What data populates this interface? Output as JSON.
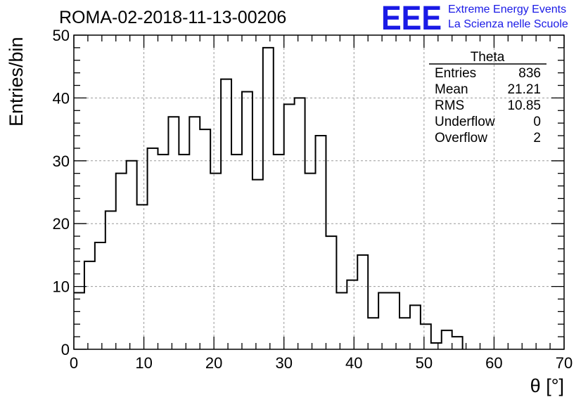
{
  "colors": {
    "brand": "#1a1ae6",
    "line": "#000000",
    "grid": "#999999"
  },
  "logo": {
    "mark": "EEE",
    "line1": "Extreme Energy Events",
    "line2": "La Scienza nelle Scuole"
  },
  "stats": {
    "title": "Theta",
    "rows": [
      {
        "label": "Entries",
        "value": "836"
      },
      {
        "label": "Mean",
        "value": "21.21"
      },
      {
        "label": "RMS",
        "value": "10.85"
      },
      {
        "label": "Underflow",
        "value": "0"
      },
      {
        "label": "Overflow",
        "value": "2"
      }
    ]
  },
  "chart_data": {
    "type": "histogram",
    "title": "ROMA-02-2018-11-13-00206",
    "xlabel": "θ [°]",
    "ylabel": "Entries/bin",
    "xlim": [
      0,
      70
    ],
    "ylim": [
      0,
      50
    ],
    "grid": true,
    "bin_width": 1.5,
    "bin_edges_start": 0,
    "x_ticks": [
      0,
      10,
      20,
      30,
      40,
      50,
      60,
      70
    ],
    "y_ticks": [
      0,
      10,
      20,
      30,
      40,
      50
    ],
    "values": [
      9,
      14,
      17,
      22,
      28,
      30,
      23,
      32,
      31,
      37,
      31,
      37,
      35,
      28,
      43,
      31,
      41,
      27,
      48,
      31,
      39,
      40,
      28,
      34,
      18,
      9,
      11,
      15,
      5,
      9,
      9,
      5,
      7,
      4,
      1,
      3,
      2,
      0,
      0,
      0,
      0,
      0,
      0,
      0,
      0,
      0,
      0
    ]
  }
}
